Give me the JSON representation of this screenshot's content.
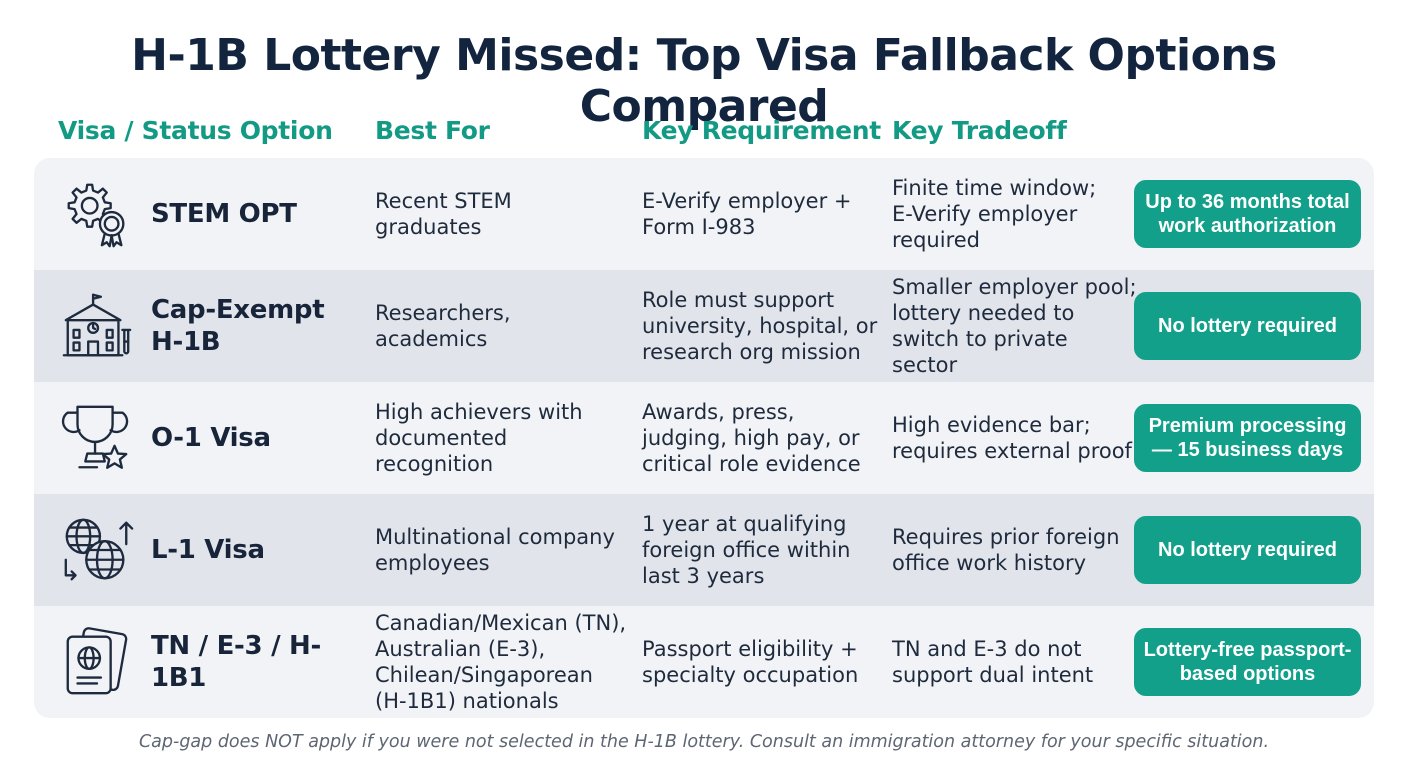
{
  "title": "H-1B Lottery Missed: Top Visa Fallback Options Compared",
  "headers": {
    "option": "Visa / Status Option",
    "best_for": "Best For",
    "requirement": "Key Requirement",
    "tradeoff": "Key Tradeoff"
  },
  "colors": {
    "accent": "#139a85",
    "badge": "#12a08a",
    "title": "#13243f",
    "row_light": "#f1f3f6",
    "row_dark": "#e1e5eb"
  },
  "rows": [
    {
      "icon": "gear-award-icon",
      "option": "STEM OPT",
      "best_for": "Recent STEM\ngraduates",
      "requirement": "E-Verify employer +\nForm I-983",
      "tradeoff": "Finite time window;\nE-Verify employer\nrequired",
      "badge": "Up to 36 months total\nwork authorization"
    },
    {
      "icon": "university-lab-icon",
      "option": "Cap-Exempt\nH-1B",
      "best_for": "Researchers,\nacademics",
      "requirement": "Role must support\nuniversity, hospital, or\nresearch org mission",
      "tradeoff": "Smaller employer pool;\nlottery needed to\nswitch to private sector",
      "badge": "No lottery required"
    },
    {
      "icon": "trophy-star-icon",
      "option": "O-1 Visa",
      "best_for": "High achievers with\ndocumented\nrecognition",
      "requirement": "Awards, press,\njudging, high pay, or\ncritical role evidence",
      "tradeoff": "High evidence bar;\nrequires external proof",
      "badge": "Premium processing\n— 15 business days"
    },
    {
      "icon": "globes-transfer-icon",
      "option": "L-1 Visa",
      "best_for": "Multinational company\nemployees",
      "requirement": "1 year at qualifying\nforeign office within\nlast 3 years",
      "tradeoff": "Requires prior foreign\noffice work history",
      "badge": "No lottery required"
    },
    {
      "icon": "passport-icon",
      "option": "TN / E-3 / H-1B1",
      "best_for": "Canadian/Mexican (TN),\nAustralian (E-3),\nChilean/Singaporean\n(H-1B1) nationals",
      "requirement": "Passport eligibility +\nspecialty occupation",
      "tradeoff": "TN and E-3 do not\nsupport dual intent",
      "badge": "Lottery-free passport-\nbased options"
    }
  ],
  "footnote": "Cap-gap does NOT apply if you were not selected in the H-1B lottery. Consult an immigration attorney for your specific situation."
}
